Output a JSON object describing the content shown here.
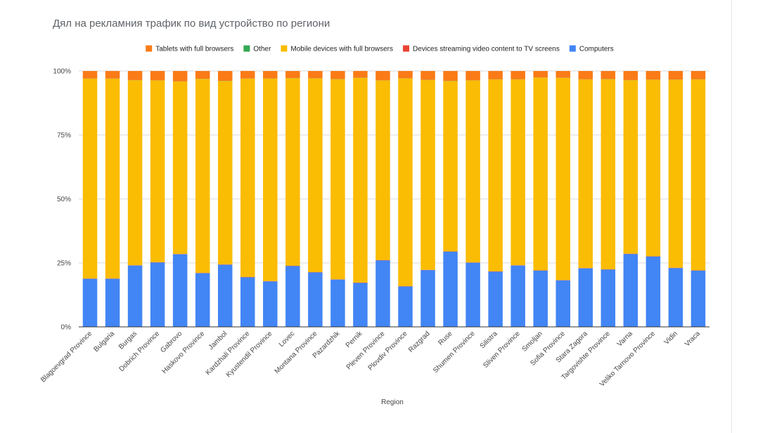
{
  "chart_data": {
    "type": "bar",
    "stacked": true,
    "normalized": true,
    "title": "Дял на рекламния трафик по вид устройство по региони",
    "xlabel": "Region",
    "ylabel": "",
    "ylim": [
      0,
      100
    ],
    "y_ticks": [
      "0%",
      "25%",
      "50%",
      "75%",
      "100%"
    ],
    "y_tick_values": [
      0,
      25,
      50,
      75,
      100
    ],
    "grid": true,
    "legend_position": "top",
    "legend": [
      {
        "name": "Tablets with full browsers",
        "color": "#fa7b17"
      },
      {
        "name": "Other",
        "color": "#34a853"
      },
      {
        "name": "Mobile devices with full browsers",
        "color": "#fbbc04"
      },
      {
        "name": "Devices streaming video content to TV screens",
        "color": "#ea4335"
      },
      {
        "name": "Computers",
        "color": "#4285f4"
      }
    ],
    "categories": [
      "Blagoevgrad Province",
      "Bulgaria",
      "Burgas",
      "Dobrich Province",
      "Gabrovo",
      "Haskovo Province",
      "Jambol",
      "Kardzhali Province",
      "Kyustendil Province",
      "Lovec",
      "Montana Province",
      "Pazardzhik",
      "Pernik",
      "Pleven Province",
      "Plovdiv Province",
      "Razgrad",
      "Ruse",
      "Shumen Province",
      "Silistra",
      "Sliven Province",
      "Smoljan",
      "Sofia Province",
      "Stara Zagora",
      "Targovishte Province",
      "Varna",
      "Veliko Tarnovo Province",
      "Vidin",
      "Vraca"
    ],
    "series": [
      {
        "name": "Computers",
        "color": "#4285f4",
        "values": [
          18.8,
          18.8,
          24,
          25.2,
          28.4,
          21,
          24.3,
          19.4,
          17.8,
          23.8,
          21.3,
          18.5,
          17.2,
          26,
          15.8,
          22.2,
          29.4,
          25.1,
          21.6,
          24,
          22,
          18.2,
          22.9,
          22.4,
          28.5,
          27.5,
          23,
          22
        ]
      },
      {
        "name": "Devices streaming video content to TV screens",
        "color": "#ea4335",
        "values": [
          0.1,
          0.1,
          0.1,
          0.1,
          0.1,
          0.1,
          0.1,
          0.1,
          0.1,
          0.1,
          0.1,
          0.1,
          0.1,
          0.1,
          0.1,
          0.1,
          0.1,
          0.1,
          0.1,
          0.1,
          0.1,
          0.1,
          0.1,
          0.1,
          0.1,
          0.1,
          0.1,
          0.1
        ]
      },
      {
        "name": "Mobile devices with full browsers",
        "color": "#fbbc04",
        "values": [
          78.1,
          78.1,
          72.3,
          71,
          67.4,
          75.8,
          71.7,
          77.5,
          79.1,
          73.3,
          75.7,
          78.2,
          80,
          70.2,
          81.2,
          74.2,
          66.6,
          71.1,
          75,
          72.6,
          75.3,
          79,
          73.7,
          74.3,
          67.8,
          69,
          73.5,
          74.6
        ]
      },
      {
        "name": "Other",
        "color": "#34a853",
        "values": [
          0.05,
          0.05,
          0.05,
          0.05,
          0.05,
          0.05,
          0.05,
          0.05,
          0.05,
          0.05,
          0.05,
          0.05,
          0.05,
          0.05,
          0.05,
          0.05,
          0.05,
          0.05,
          0.05,
          0.05,
          0.05,
          0.05,
          0.05,
          0.05,
          0.05,
          0.05,
          0.05,
          0.05
        ]
      },
      {
        "name": "Tablets with full browsers",
        "color": "#fa7b17",
        "values": [
          2.95,
          2.95,
          3.55,
          3.65,
          4.05,
          3.05,
          3.85,
          2.95,
          2.95,
          2.75,
          2.85,
          3.15,
          2.65,
          3.65,
          2.85,
          3.45,
          3.85,
          3.65,
          3.25,
          3.25,
          2.55,
          2.65,
          3.25,
          3.15,
          3.55,
          3.35,
          3.35,
          3.25
        ]
      }
    ]
  }
}
